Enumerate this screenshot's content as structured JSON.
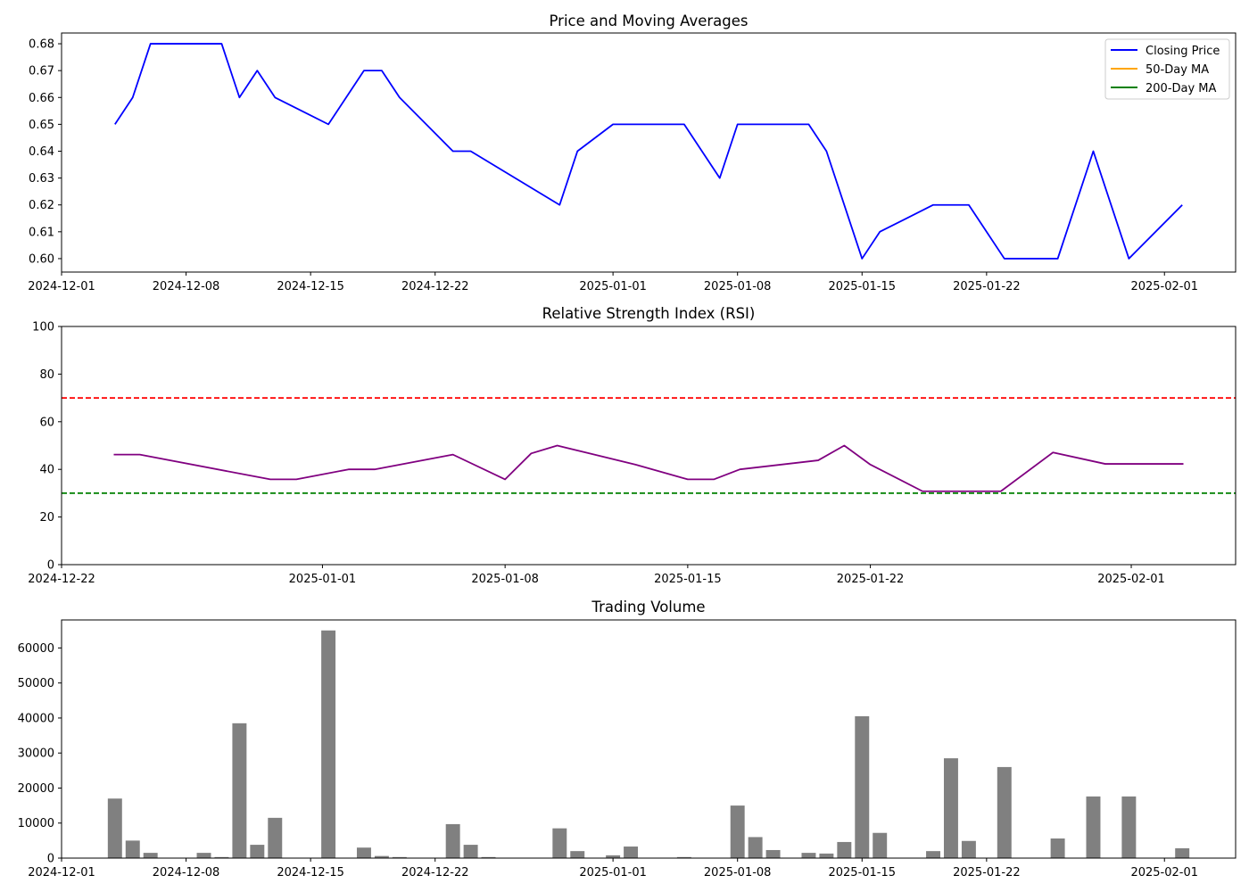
{
  "chart_data": [
    {
      "type": "line",
      "title": "Price and Moving Averages",
      "xlabel": "",
      "ylabel": "",
      "x_axis": "date",
      "xlim": [
        "2024-12-01",
        "2025-02-05"
      ],
      "ylim": [
        0.595,
        0.684
      ],
      "x_ticks": [
        "2024-12-01",
        "2024-12-08",
        "2024-12-15",
        "2024-12-22",
        "2025-01-01",
        "2025-01-08",
        "2025-01-15",
        "2025-01-22",
        "2025-02-01"
      ],
      "y_ticks": [
        0.6,
        0.61,
        0.62,
        0.63,
        0.64,
        0.65,
        0.66,
        0.67,
        0.68
      ],
      "legend": {
        "position": "top-right",
        "entries": [
          "Closing Price",
          "50-Day MA",
          "200-Day MA"
        ]
      },
      "series": [
        {
          "name": "Closing Price",
          "color": "#0000ff",
          "x": [
            "2024-12-04",
            "2024-12-05",
            "2024-12-06",
            "2024-12-09",
            "2024-12-10",
            "2024-12-11",
            "2024-12-12",
            "2024-12-13",
            "2024-12-16",
            "2024-12-18",
            "2024-12-19",
            "2024-12-20",
            "2024-12-23",
            "2024-12-24",
            "2024-12-29",
            "2024-12-30",
            "2025-01-01",
            "2025-01-05",
            "2025-01-07",
            "2025-01-08",
            "2025-01-12",
            "2025-01-13",
            "2025-01-15",
            "2025-01-16",
            "2025-01-19",
            "2025-01-21",
            "2025-01-23",
            "2025-01-26",
            "2025-01-28",
            "2025-01-30",
            "2025-02-02"
          ],
          "values": [
            0.65,
            0.66,
            0.68,
            0.68,
            0.68,
            0.66,
            0.67,
            0.66,
            0.65,
            0.67,
            0.67,
            0.66,
            0.64,
            0.64,
            0.62,
            0.64,
            0.65,
            0.65,
            0.63,
            0.65,
            0.65,
            0.64,
            0.6,
            0.61,
            0.62,
            0.62,
            0.6,
            0.6,
            0.64,
            0.6,
            0.62
          ]
        },
        {
          "name": "50-Day MA",
          "color": "#ffa500",
          "x": [],
          "values": []
        },
        {
          "name": "200-Day MA",
          "color": "#008000",
          "x": [],
          "values": []
        }
      ]
    },
    {
      "type": "line",
      "title": "Relative Strength Index (RSI)",
      "xlabel": "",
      "ylabel": "",
      "x_axis": "date",
      "xlim": [
        "2024-12-22",
        "2025-02-05"
      ],
      "ylim": [
        0,
        100
      ],
      "x_ticks": [
        "2024-12-22",
        "2025-01-01",
        "2025-01-08",
        "2025-01-15",
        "2025-01-22",
        "2025-02-01"
      ],
      "y_ticks": [
        0,
        20,
        40,
        60,
        80,
        100
      ],
      "reference_lines": [
        {
          "value": 70,
          "color": "#ff0000",
          "style": "dashed"
        },
        {
          "value": 30,
          "color": "#008000",
          "style": "dashed"
        }
      ],
      "series": [
        {
          "color": "#800080",
          "x": [
            "2024-12-24",
            "2024-12-25",
            "2024-12-30",
            "2024-12-31",
            "2025-01-02",
            "2025-01-03",
            "2025-01-06",
            "2025-01-08",
            "2025-01-09",
            "2025-01-10",
            "2025-01-13",
            "2025-01-15",
            "2025-01-16",
            "2025-01-17",
            "2025-01-20",
            "2025-01-21",
            "2025-01-22",
            "2025-01-24",
            "2025-01-27",
            "2025-01-29",
            "2025-01-31",
            "2025-02-03"
          ],
          "values": [
            46.2,
            46.2,
            35.8,
            35.8,
            40.0,
            40.0,
            46.2,
            35.8,
            46.7,
            50.0,
            42.0,
            35.8,
            35.8,
            40.0,
            43.8,
            50.0,
            42.0,
            30.8,
            30.8,
            47.1,
            42.3,
            42.3
          ]
        }
      ]
    },
    {
      "type": "bar",
      "title": "Trading Volume",
      "xlabel": "",
      "ylabel": "",
      "x_axis": "date",
      "xlim": [
        "2024-12-01",
        "2025-02-05"
      ],
      "ylim": [
        0,
        68000
      ],
      "x_ticks": [
        "2024-12-01",
        "2024-12-08",
        "2024-12-15",
        "2024-12-22",
        "2025-01-01",
        "2025-01-08",
        "2025-01-15",
        "2025-01-22",
        "2025-02-01"
      ],
      "y_ticks": [
        0,
        10000,
        20000,
        30000,
        40000,
        50000,
        60000
      ],
      "bar_color": "#808080",
      "x": [
        "2024-12-04",
        "2024-12-05",
        "2024-12-06",
        "2024-12-09",
        "2024-12-10",
        "2024-12-11",
        "2024-12-12",
        "2024-12-13",
        "2024-12-16",
        "2024-12-18",
        "2024-12-19",
        "2024-12-20",
        "2024-12-23",
        "2024-12-24",
        "2024-12-25",
        "2024-12-29",
        "2024-12-30",
        "2025-01-01",
        "2025-01-02",
        "2025-01-05",
        "2025-01-08",
        "2025-01-09",
        "2025-01-10",
        "2025-01-12",
        "2025-01-13",
        "2025-01-14",
        "2025-01-15",
        "2025-01-16",
        "2025-01-19",
        "2025-01-20",
        "2025-01-21",
        "2025-01-23",
        "2025-01-26",
        "2025-01-28",
        "2025-01-30",
        "2025-02-02"
      ],
      "values": [
        17000,
        5000,
        1500,
        1500,
        300,
        38500,
        3800,
        11500,
        65000,
        3000,
        600,
        300,
        9700,
        3800,
        300,
        8500,
        2000,
        800,
        3300,
        300,
        15000,
        6000,
        2300,
        1500,
        1300,
        4600,
        40500,
        7200,
        2000,
        28500,
        4900,
        26000,
        5600,
        17600,
        17600,
        2800
      ]
    }
  ]
}
